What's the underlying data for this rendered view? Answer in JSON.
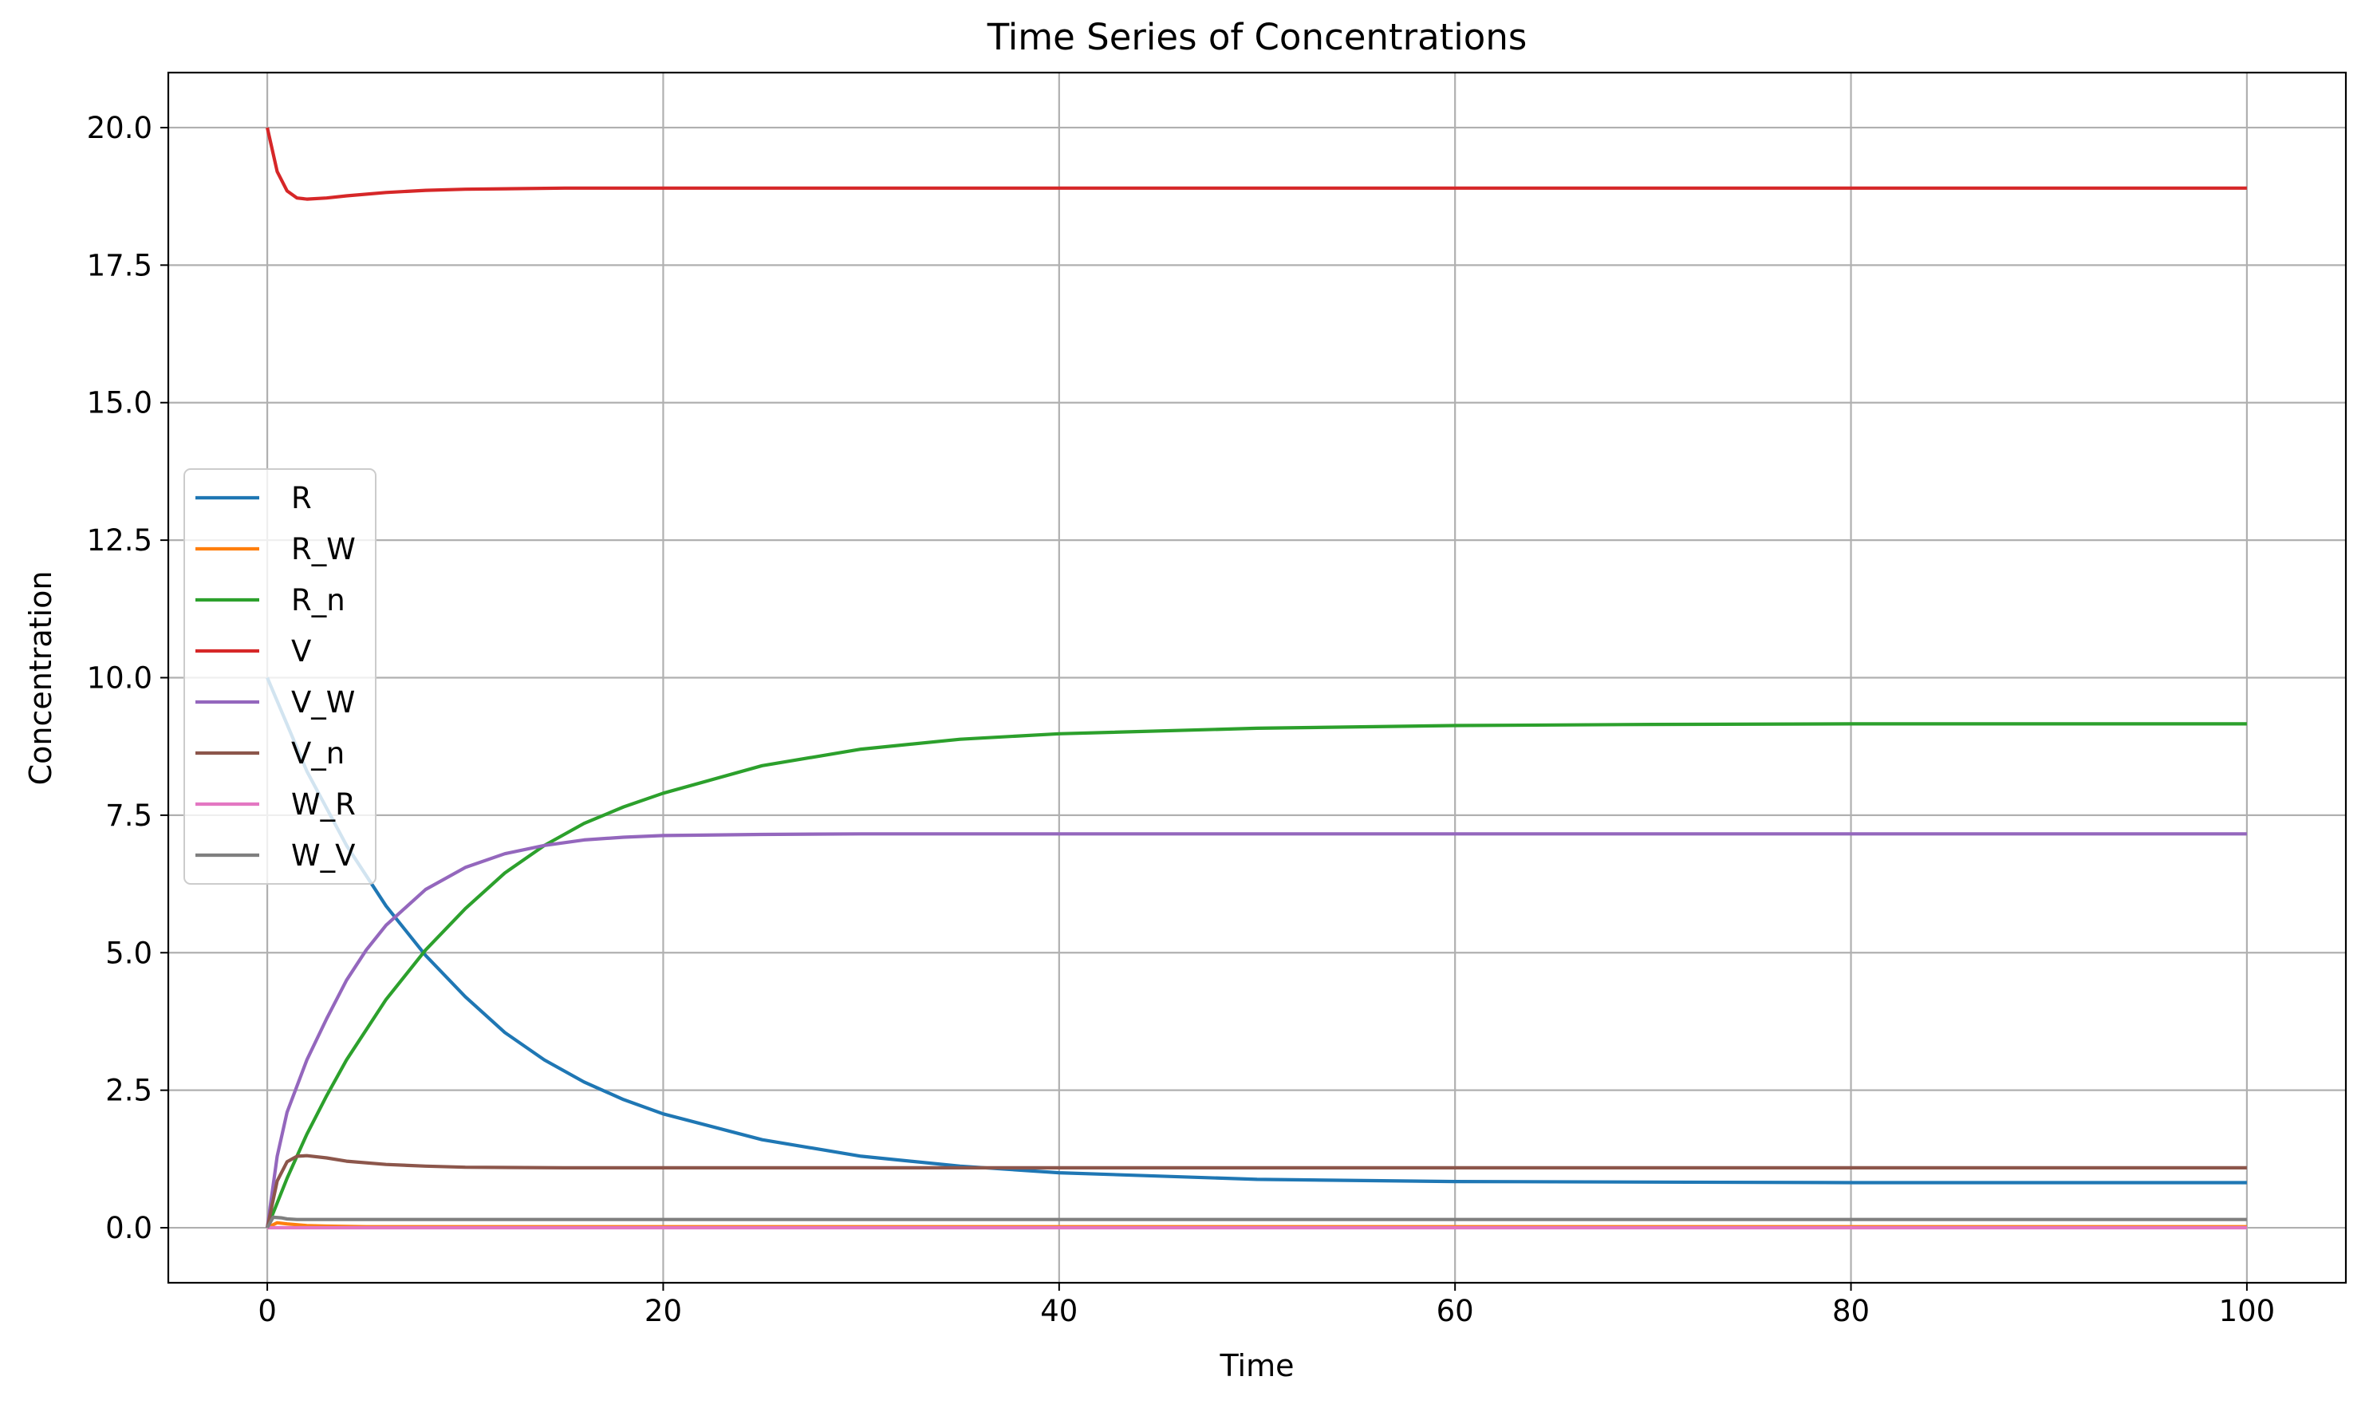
{
  "chart_data": {
    "type": "line",
    "title": "Time Series of Concentrations",
    "xlabel": "Time",
    "ylabel": "Concentration",
    "xlim": [
      -5,
      105
    ],
    "ylim": [
      -1,
      21
    ],
    "xticks": [
      0,
      20,
      40,
      60,
      80,
      100
    ],
    "xtick_labels": [
      "0",
      "20",
      "40",
      "60",
      "80",
      "100"
    ],
    "yticks": [
      0,
      2.5,
      5,
      7.5,
      10,
      12.5,
      15,
      17.5,
      20
    ],
    "ytick_labels": [
      "0.0",
      "2.5",
      "5.0",
      "7.5",
      "10.0",
      "12.5",
      "15.0",
      "17.5",
      "20.0"
    ],
    "grid": true,
    "legend_position": "center-left",
    "series": [
      {
        "name": "R",
        "color": "#1f77b4",
        "x": [
          0,
          2,
          4,
          6,
          8,
          10,
          12,
          14,
          16,
          18,
          20,
          25,
          30,
          35,
          40,
          50,
          60,
          70,
          80,
          90,
          100
        ],
        "y": [
          10.0,
          8.3,
          6.95,
          5.85,
          4.95,
          4.2,
          3.55,
          3.05,
          2.65,
          2.33,
          2.07,
          1.6,
          1.3,
          1.12,
          1.0,
          0.88,
          0.84,
          0.83,
          0.82,
          0.82,
          0.82
        ]
      },
      {
        "name": "R_W",
        "color": "#ff7f0e",
        "x": [
          0,
          0.5,
          1,
          2,
          3,
          5,
          10,
          20,
          40,
          60,
          80,
          100
        ],
        "y": [
          0.0,
          0.09,
          0.07,
          0.04,
          0.03,
          0.02,
          0.02,
          0.02,
          0.02,
          0.02,
          0.02,
          0.02
        ]
      },
      {
        "name": "R_n",
        "color": "#2ca02c",
        "x": [
          0,
          1,
          2,
          3,
          4,
          6,
          8,
          10,
          12,
          14,
          16,
          18,
          20,
          25,
          30,
          35,
          40,
          50,
          60,
          70,
          80,
          90,
          100
        ],
        "y": [
          0.0,
          0.9,
          1.7,
          2.4,
          3.05,
          4.15,
          5.05,
          5.8,
          6.45,
          6.95,
          7.35,
          7.65,
          7.9,
          8.4,
          8.7,
          8.88,
          8.98,
          9.08,
          9.13,
          9.15,
          9.16,
          9.16,
          9.16
        ]
      },
      {
        "name": "V",
        "color": "#d62728",
        "x": [
          0,
          0.5,
          1,
          1.5,
          2,
          3,
          4,
          6,
          8,
          10,
          15,
          20,
          30,
          40,
          60,
          80,
          100
        ],
        "y": [
          20.0,
          19.2,
          18.85,
          18.72,
          18.7,
          18.72,
          18.76,
          18.82,
          18.86,
          18.88,
          18.9,
          18.9,
          18.9,
          18.9,
          18.9,
          18.9,
          18.9
        ]
      },
      {
        "name": "V_W",
        "color": "#9467bd",
        "x": [
          0,
          0.5,
          1,
          2,
          3,
          4,
          5,
          6,
          8,
          10,
          12,
          14,
          16,
          18,
          20,
          25,
          30,
          40,
          60,
          80,
          100
        ],
        "y": [
          0.0,
          1.3,
          2.1,
          3.05,
          3.8,
          4.5,
          5.05,
          5.5,
          6.15,
          6.55,
          6.8,
          6.95,
          7.05,
          7.1,
          7.13,
          7.15,
          7.16,
          7.16,
          7.16,
          7.16,
          7.16
        ]
      },
      {
        "name": "V_n",
        "color": "#8c564b",
        "x": [
          0,
          0.5,
          1,
          1.5,
          2,
          3,
          4,
          6,
          8,
          10,
          15,
          20,
          40,
          60,
          80,
          100
        ],
        "y": [
          0.0,
          0.85,
          1.2,
          1.3,
          1.31,
          1.27,
          1.21,
          1.15,
          1.12,
          1.1,
          1.09,
          1.09,
          1.09,
          1.09,
          1.09,
          1.09
        ]
      },
      {
        "name": "W_R",
        "color": "#e377c2",
        "x": [
          0,
          0.5,
          1,
          2,
          5,
          20,
          40,
          60,
          80,
          100
        ],
        "y": [
          0.0,
          0.0,
          0.0,
          0.0,
          0.0,
          0.0,
          0.0,
          0.0,
          0.0,
          0.0
        ]
      },
      {
        "name": "W_V",
        "color": "#7f7f7f",
        "x": [
          0,
          0.3,
          0.7,
          1,
          1.5,
          2,
          5,
          20,
          40,
          60,
          80,
          100
        ],
        "y": [
          0.0,
          0.19,
          0.18,
          0.16,
          0.15,
          0.15,
          0.15,
          0.15,
          0.15,
          0.15,
          0.15,
          0.15
        ]
      }
    ]
  }
}
